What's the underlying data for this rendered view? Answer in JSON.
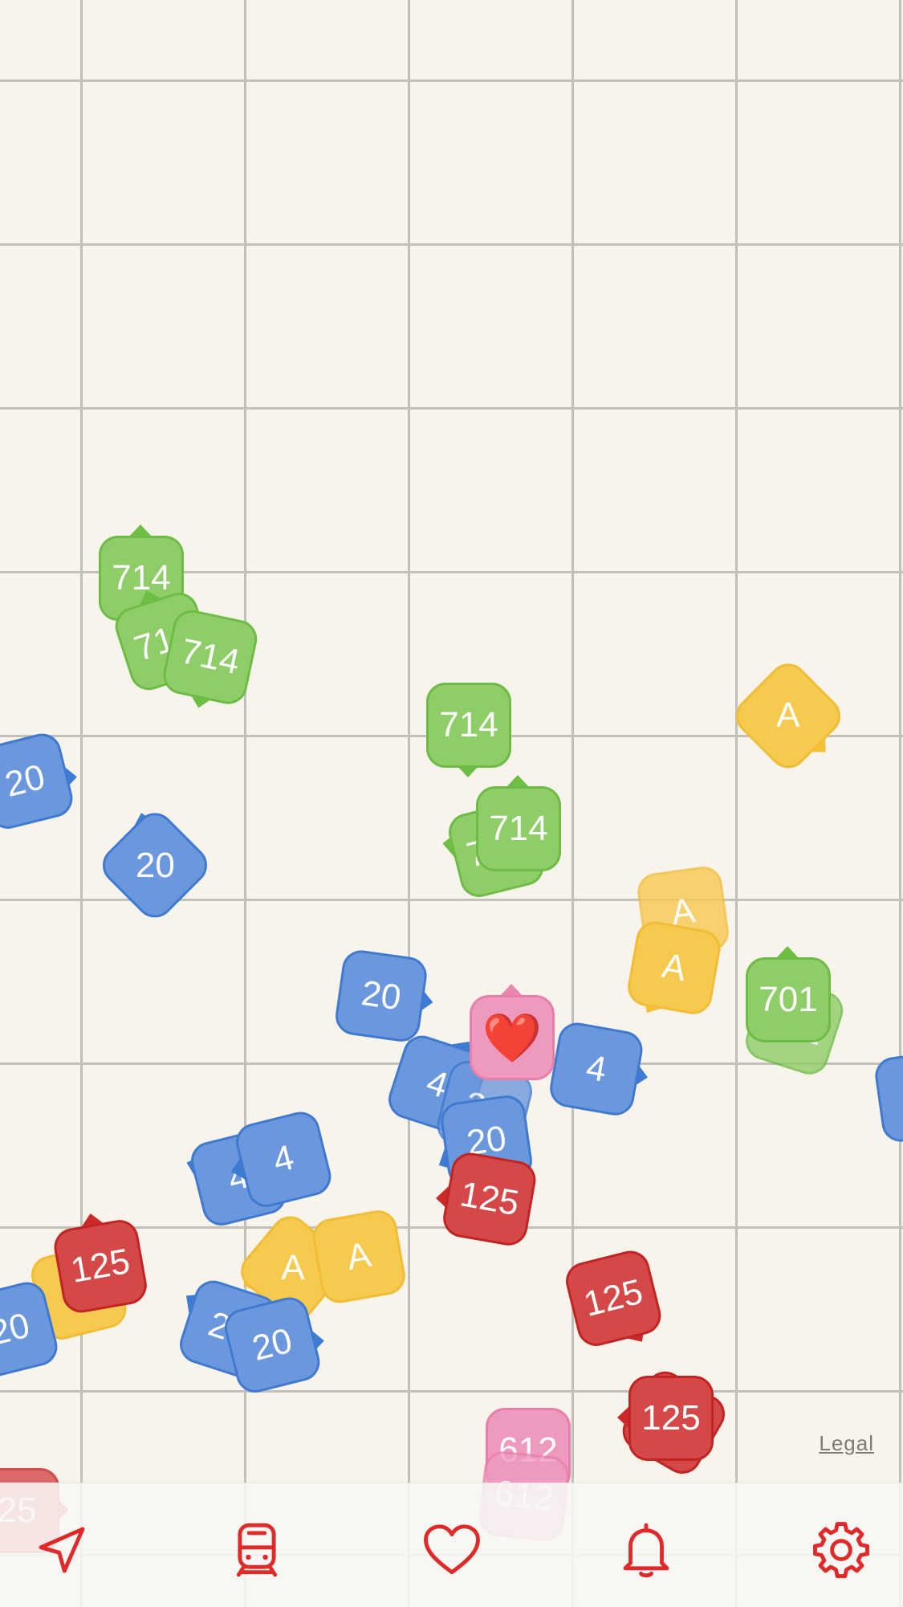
{
  "colors": {
    "map_background": "#f8f4ec",
    "grid_line": "#c2c0bb",
    "accent": "#e02a2a",
    "route_blue": "#6b98dc",
    "route_green": "#8fcd68",
    "route_yellow": "#f6c94f",
    "route_red": "#d54848",
    "route_pink": "#ee9ac0"
  },
  "map": {
    "markers": [
      {
        "route": "714",
        "color": "green"
      },
      {
        "route": "714",
        "color": "green"
      },
      {
        "route": "714",
        "color": "green"
      },
      {
        "route": "714",
        "color": "green"
      },
      {
        "route": "714",
        "color": "green"
      },
      {
        "route": "714",
        "color": "green"
      },
      {
        "route": "A",
        "color": "yellow"
      },
      {
        "route": "20",
        "color": "blue"
      },
      {
        "route": "20",
        "color": "blue"
      },
      {
        "route": "20",
        "color": "blue"
      },
      {
        "route": "4",
        "color": "blue"
      },
      {
        "route": "20",
        "color": "blue"
      },
      {
        "route": "20",
        "color": "blue"
      },
      {
        "route": "4",
        "color": "blue"
      },
      {
        "route": "A",
        "color": "yellow"
      },
      {
        "route": "A",
        "color": "yellow"
      },
      {
        "route": "701",
        "color": "green"
      },
      {
        "route": "701",
        "color": "green"
      },
      {
        "route": "4",
        "color": "blue"
      },
      {
        "route": "4",
        "color": "blue"
      },
      {
        "route": "125",
        "color": "red"
      },
      {
        "route": "A",
        "color": "yellow"
      },
      {
        "route": "125",
        "color": "red"
      },
      {
        "route": "A",
        "color": "yellow"
      },
      {
        "route": "A",
        "color": "yellow"
      },
      {
        "route": "20",
        "color": "blue"
      },
      {
        "route": "20",
        "color": "blue"
      },
      {
        "route": "20",
        "color": "blue"
      },
      {
        "route": "125",
        "color": "red"
      },
      {
        "route": "125",
        "color": "red"
      },
      {
        "route": "125",
        "color": "red"
      },
      {
        "route": "612",
        "color": "pink"
      },
      {
        "route": "612",
        "color": "pink"
      },
      {
        "route": "25",
        "color": "red"
      },
      {
        "route": "❤️",
        "color": "pink"
      }
    ]
  },
  "legal": {
    "label": "Legal"
  },
  "tab_bar": {
    "tabs": [
      {
        "icon": "location-arrow-icon"
      },
      {
        "icon": "train-icon"
      },
      {
        "icon": "heart-icon"
      },
      {
        "icon": "bell-icon"
      },
      {
        "icon": "gear-icon"
      }
    ]
  }
}
